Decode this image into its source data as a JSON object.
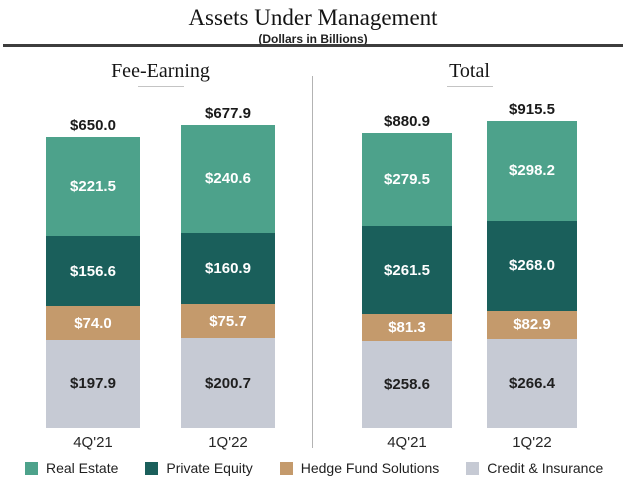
{
  "header": {
    "title": "Assets Under Management",
    "subtitle": "(Dollars in Billions)"
  },
  "chart_data": [
    {
      "type": "bar",
      "stacked": true,
      "title": "Fee-Earning",
      "categories": [
        "4Q'21",
        "1Q'22"
      ],
      "series": [
        {
          "name": "Real Estate",
          "color": "#4DA28B",
          "text_color": "#ffffff",
          "values": [
            221.5,
            240.6
          ]
        },
        {
          "name": "Private Equity",
          "color": "#1A5F5B",
          "text_color": "#ffffff",
          "values": [
            156.6,
            160.9
          ]
        },
        {
          "name": "Hedge Fund Solutions",
          "color": "#C49A6C",
          "text_color": "#ffffff",
          "values": [
            74.0,
            75.7
          ]
        },
        {
          "name": "Credit & Insurance",
          "color": "#C6CAD4",
          "text_color": "#1f1f1f",
          "values": [
            197.9,
            200.7
          ]
        }
      ],
      "totals": [
        650.0,
        677.9
      ],
      "total_labels": [
        "$650.0",
        "$677.9"
      ],
      "segment_labels": [
        [
          "$221.5",
          "$156.6",
          "$74.0",
          "$197.9"
        ],
        [
          "$240.6",
          "$160.9",
          "$75.7",
          "$200.7"
        ]
      ]
    },
    {
      "type": "bar",
      "stacked": true,
      "title": "Total",
      "categories": [
        "4Q'21",
        "1Q'22"
      ],
      "series": [
        {
          "name": "Real Estate",
          "color": "#4DA28B",
          "text_color": "#ffffff",
          "values": [
            279.5,
            298.2
          ]
        },
        {
          "name": "Private Equity",
          "color": "#1A5F5B",
          "text_color": "#ffffff",
          "values": [
            261.5,
            268.0
          ]
        },
        {
          "name": "Hedge Fund Solutions",
          "color": "#C49A6C",
          "text_color": "#ffffff",
          "values": [
            81.3,
            82.9
          ]
        },
        {
          "name": "Credit & Insurance",
          "color": "#C6CAD4",
          "text_color": "#1f1f1f",
          "values": [
            258.6,
            266.4
          ]
        }
      ],
      "totals": [
        880.9,
        915.5
      ],
      "total_labels": [
        "$880.9",
        "$915.5"
      ],
      "segment_labels": [
        [
          "$279.5",
          "$261.5",
          "$81.3",
          "$258.6"
        ],
        [
          "$298.2",
          "$268.0",
          "$82.9",
          "$266.4"
        ]
      ]
    }
  ],
  "legend": {
    "entries": [
      {
        "label": "Real Estate",
        "color": "#4DA28B"
      },
      {
        "label": "Private Equity",
        "color": "#1A5F5B"
      },
      {
        "label": "Hedge Fund Solutions",
        "color": "#C49A6C"
      },
      {
        "label": "Credit & Insurance",
        "color": "#C6CAD4"
      }
    ]
  }
}
